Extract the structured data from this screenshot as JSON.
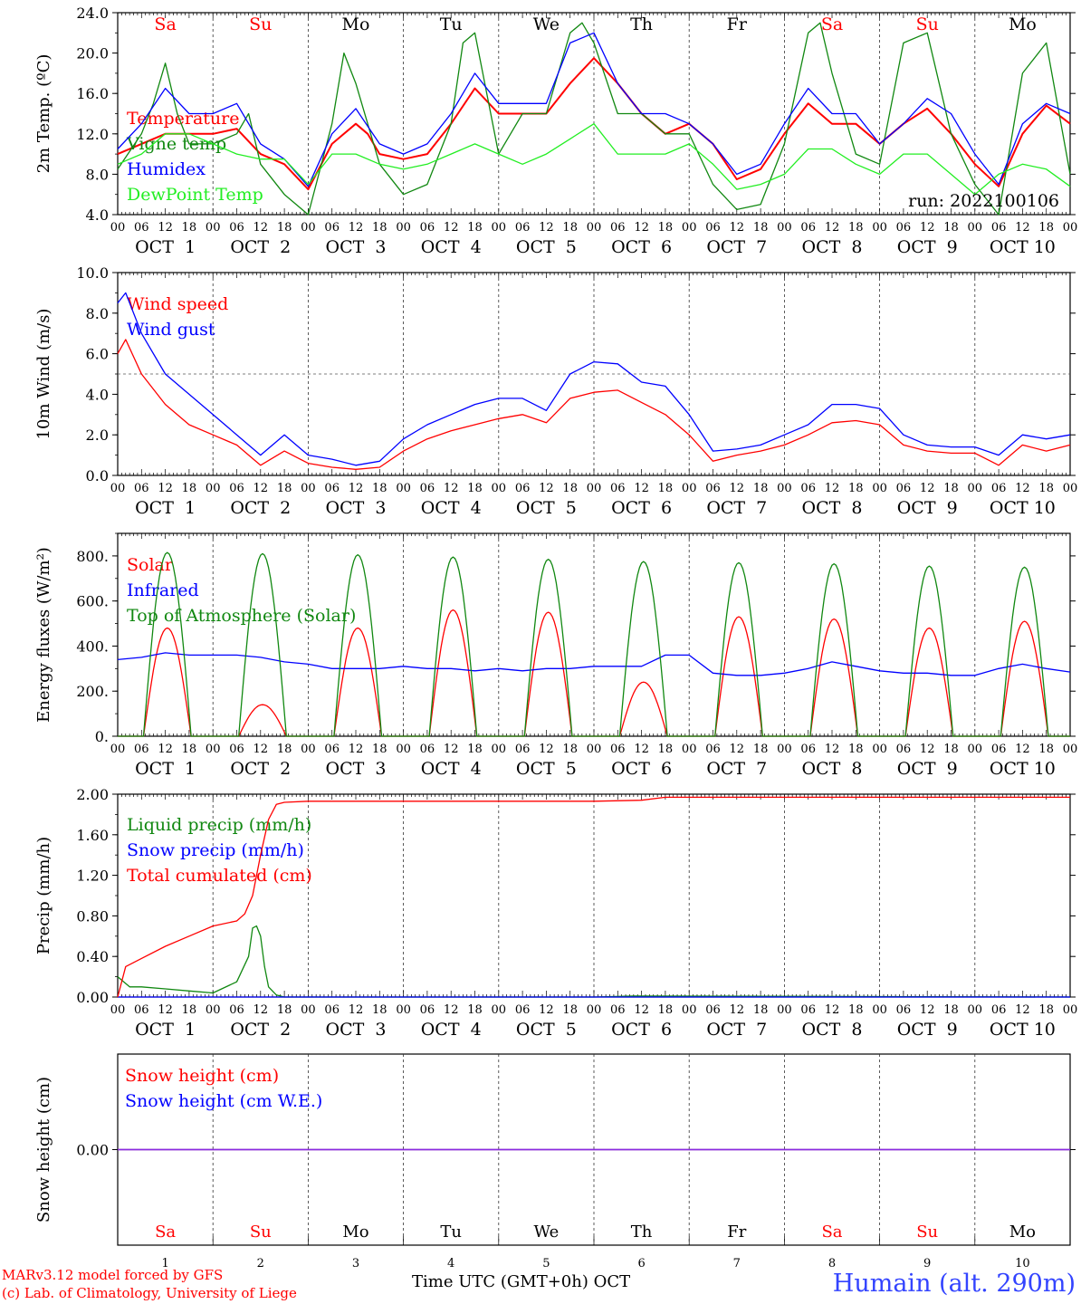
{
  "page": {
    "footer_model": "MARv3.12 model forced by GFS",
    "footer_copyright": "(c) Lab. of Climatology, University of Liege",
    "xlabel": "Time UTC (GMT+0h)",
    "xunit": "OCT",
    "station": "Humain (alt. 290m)",
    "run": "run: 2022100106"
  },
  "colors": {
    "red": "#ff0000",
    "blue": "#0000ff",
    "green": "#118811",
    "lightgreen": "#22ee22",
    "weekend": "#ff0000",
    "weekday": "#000000",
    "purple": "#8a2be2"
  },
  "axis": {
    "days": [
      "1",
      "2",
      "3",
      "4",
      "5",
      "6",
      "7",
      "8",
      "9",
      "10"
    ],
    "dates": [
      "OCT  1",
      "OCT  2",
      "OCT  3",
      "OCT  4",
      "OCT  5",
      "OCT  6",
      "OCT  7",
      "OCT  8",
      "OCT  9",
      "OCT 10"
    ],
    "hours": [
      "00",
      "06",
      "12",
      "18"
    ],
    "weekdays": [
      "Sa",
      "Su",
      "Mo",
      "Tu",
      "We",
      "Th",
      "Fr",
      "Sa",
      "Su",
      "Mo"
    ],
    "weekend": [
      true,
      true,
      false,
      false,
      false,
      false,
      false,
      true,
      true,
      false
    ]
  },
  "chart_data": [
    {
      "type": "line",
      "ylabel": "2m Temp. (ºC)",
      "ylim": [
        4,
        24
      ],
      "yticks": [
        "4.0",
        "8.0",
        "12.0",
        "16.0",
        "20.0",
        "24.0"
      ],
      "x_unit": "hours since OCT 1 00 UTC",
      "series": [
        {
          "name": "Temperature",
          "color": "red",
          "x": [
            0,
            6,
            12,
            18,
            24,
            30,
            36,
            42,
            48,
            54,
            60,
            63,
            66,
            72,
            78,
            84,
            90,
            96,
            102,
            108,
            114,
            120,
            126,
            132,
            138,
            144,
            150,
            156,
            162,
            168,
            174,
            180,
            186,
            192,
            198,
            204,
            210,
            216,
            222,
            228,
            234,
            240
          ],
          "values": [
            10,
            11,
            12,
            12,
            12,
            12.5,
            10,
            9,
            6.5,
            11,
            13,
            12,
            10,
            9.5,
            10,
            13,
            16.5,
            14,
            14,
            14,
            17,
            19.5,
            17,
            14,
            12,
            13,
            11,
            7.5,
            8.5,
            12,
            15,
            13,
            13,
            11,
            13,
            14.5,
            12,
            9,
            6.8,
            12,
            14.8,
            13
          ]
        },
        {
          "name": "Vigne temp",
          "color": "green",
          "x": [
            0,
            6,
            9,
            12,
            15,
            18,
            24,
            30,
            33,
            36,
            42,
            48,
            54,
            57,
            60,
            66,
            72,
            78,
            84,
            87,
            90,
            96,
            102,
            108,
            114,
            117,
            120,
            126,
            132,
            138,
            144,
            150,
            156,
            162,
            168,
            174,
            177,
            180,
            186,
            192,
            198,
            204,
            210,
            216,
            222,
            228,
            234,
            240
          ],
          "values": [
            8.5,
            12,
            15,
            19,
            14,
            11,
            11,
            12,
            14,
            9,
            6,
            4,
            13,
            20,
            17,
            9,
            6,
            7,
            13,
            21,
            22,
            10,
            14,
            14,
            22,
            23,
            21,
            14,
            14,
            12,
            12,
            7,
            4.5,
            5,
            11,
            22,
            23,
            18,
            10,
            9,
            21,
            22,
            12,
            7,
            4,
            18,
            21,
            8
          ]
        },
        {
          "name": "Humidex",
          "color": "blue",
          "x": [
            0,
            6,
            12,
            18,
            24,
            30,
            36,
            42,
            48,
            54,
            60,
            66,
            72,
            78,
            84,
            90,
            96,
            102,
            108,
            114,
            120,
            126,
            132,
            138,
            144,
            150,
            156,
            162,
            168,
            174,
            180,
            186,
            192,
            198,
            204,
            210,
            216,
            222,
            228,
            234,
            240
          ],
          "values": [
            10.5,
            13,
            16.5,
            14,
            14,
            15,
            11,
            9.5,
            6.8,
            12,
            14.5,
            11,
            10,
            11,
            14,
            18,
            15,
            15,
            15,
            21,
            22,
            17,
            14,
            14,
            13,
            11,
            8,
            9,
            13,
            16.5,
            14,
            14,
            11,
            13,
            15.5,
            14,
            10,
            7,
            13,
            15,
            14
          ]
        },
        {
          "name": "DewPoint Temp",
          "color": "lightgreen",
          "x": [
            0,
            6,
            12,
            18,
            24,
            30,
            36,
            42,
            48,
            54,
            60,
            66,
            72,
            78,
            84,
            90,
            96,
            102,
            108,
            114,
            120,
            126,
            132,
            138,
            144,
            150,
            156,
            162,
            168,
            174,
            180,
            186,
            192,
            198,
            204,
            210,
            216,
            222,
            228,
            234,
            240
          ],
          "values": [
            9,
            10,
            12,
            12,
            11,
            10,
            9.5,
            9.5,
            7,
            10,
            10,
            9,
            8.5,
            9,
            10,
            11,
            10,
            9,
            10,
            11.5,
            13,
            10,
            10,
            10,
            11,
            9,
            6.5,
            7,
            8,
            10.5,
            10.5,
            9,
            8,
            10,
            10,
            8,
            6,
            8,
            9,
            8.5,
            6.8
          ]
        }
      ]
    },
    {
      "type": "line",
      "ylabel": "10m Wind (m/s)",
      "ylim": [
        0,
        10
      ],
      "yticks": [
        "0.0",
        "2.0",
        "4.0",
        "6.0",
        "8.0",
        "10.0"
      ],
      "ref_line": 5,
      "series": [
        {
          "name": "Wind speed",
          "color": "red",
          "x": [
            0,
            2,
            6,
            12,
            18,
            24,
            30,
            36,
            42,
            48,
            54,
            60,
            66,
            72,
            78,
            84,
            90,
            96,
            102,
            108,
            114,
            120,
            126,
            132,
            138,
            144,
            150,
            156,
            162,
            168,
            174,
            180,
            186,
            192,
            198,
            204,
            210,
            216,
            222,
            228,
            234,
            240
          ],
          "values": [
            6,
            6.7,
            5,
            3.5,
            2.5,
            2,
            1.5,
            0.5,
            1.2,
            0.6,
            0.4,
            0.3,
            0.4,
            1.2,
            1.8,
            2.2,
            2.5,
            2.8,
            3,
            2.6,
            3.8,
            4.1,
            4.2,
            3.6,
            3,
            2,
            0.7,
            1,
            1.2,
            1.5,
            2,
            2.6,
            2.7,
            2.5,
            1.5,
            1.2,
            1.1,
            1.1,
            0.5,
            1.5,
            1.2,
            1.5
          ]
        },
        {
          "name": "Wind gust",
          "color": "blue",
          "x": [
            0,
            2,
            6,
            12,
            18,
            24,
            30,
            36,
            42,
            48,
            54,
            60,
            66,
            72,
            78,
            84,
            90,
            96,
            102,
            108,
            114,
            120,
            126,
            132,
            138,
            144,
            150,
            156,
            162,
            168,
            174,
            180,
            186,
            192,
            198,
            204,
            210,
            216,
            222,
            228,
            234,
            240
          ],
          "values": [
            8.5,
            9,
            7,
            5,
            4,
            3,
            2,
            1,
            2,
            1,
            0.8,
            0.5,
            0.7,
            1.8,
            2.5,
            3,
            3.5,
            3.8,
            3.8,
            3.2,
            5,
            5.6,
            5.5,
            4.6,
            4.4,
            3,
            1.2,
            1.3,
            1.5,
            2,
            2.5,
            3.5,
            3.5,
            3.3,
            2,
            1.5,
            1.4,
            1.4,
            1,
            2,
            1.8,
            2
          ]
        }
      ]
    },
    {
      "type": "line",
      "ylabel": "Energy fluxes (W/m²)",
      "ylim": [
        0,
        900
      ],
      "yticks": [
        "0.",
        "200.",
        "400.",
        "600.",
        "800."
      ],
      "series": [
        {
          "name": "Solar",
          "color": "red",
          "peaks": [
            480,
            140,
            480,
            560,
            550,
            240,
            530,
            520,
            480,
            510
          ]
        },
        {
          "name": "Infrared",
          "color": "blue",
          "x": [
            0,
            6,
            12,
            18,
            24,
            30,
            36,
            42,
            48,
            54,
            60,
            66,
            72,
            78,
            84,
            90,
            96,
            102,
            108,
            114,
            120,
            126,
            132,
            138,
            144,
            150,
            156,
            162,
            168,
            174,
            180,
            186,
            192,
            198,
            204,
            210,
            216,
            222,
            228,
            234,
            240
          ],
          "values": [
            340,
            350,
            370,
            360,
            360,
            360,
            350,
            330,
            320,
            300,
            300,
            300,
            310,
            300,
            300,
            290,
            300,
            290,
            300,
            300,
            310,
            310,
            310,
            360,
            360,
            280,
            270,
            270,
            280,
            300,
            330,
            310,
            290,
            280,
            280,
            270,
            270,
            300,
            320,
            300,
            285
          ]
        },
        {
          "name": "Top of Atmosphere (Solar)",
          "color": "green",
          "peaks": [
            815,
            810,
            805,
            795,
            785,
            775,
            770,
            765,
            755,
            750
          ]
        }
      ]
    },
    {
      "type": "line",
      "ylabel": "Precip (mm/h)",
      "ylim": [
        0,
        2
      ],
      "yticks": [
        "0.00",
        "0.40",
        "0.80",
        "1.20",
        "1.60",
        "2.00"
      ],
      "series": [
        {
          "name": "Liquid precip (mm/h)",
          "color": "green",
          "x": [
            0,
            3,
            6,
            12,
            18,
            24,
            30,
            33,
            34,
            35,
            36,
            37,
            38,
            40,
            42,
            48,
            120,
            130,
            240
          ],
          "values": [
            0.2,
            0.1,
            0.1,
            0.08,
            0.06,
            0.04,
            0.15,
            0.4,
            0.68,
            0.7,
            0.6,
            0.3,
            0.1,
            0.02,
            0,
            0,
            0,
            0.01,
            0
          ]
        },
        {
          "name": "Snow precip (mm/h)",
          "color": "blue",
          "x": [
            0,
            240
          ],
          "values": [
            0,
            0
          ]
        },
        {
          "name": "Total cumulated (cm)",
          "color": "red",
          "x": [
            0,
            2,
            6,
            12,
            18,
            24,
            30,
            32,
            34,
            36,
            38,
            40,
            42,
            48,
            60,
            96,
            120,
            132,
            138,
            144,
            240
          ],
          "values": [
            0,
            0.3,
            0.38,
            0.5,
            0.6,
            0.7,
            0.75,
            0.82,
            1.0,
            1.4,
            1.75,
            1.9,
            1.92,
            1.93,
            1.93,
            1.93,
            1.93,
            1.94,
            1.97,
            1.97,
            1.97
          ]
        }
      ]
    },
    {
      "type": "line",
      "ylabel": "Snow height (cm)",
      "ylim": [
        -1,
        1
      ],
      "yticks": [
        "0.00"
      ],
      "series": [
        {
          "name": "Snow height (cm)",
          "color": "red",
          "x": [
            0,
            240
          ],
          "values": [
            0,
            0
          ]
        },
        {
          "name": "Snow height (cm W.E.)",
          "color": "blue",
          "x": [
            0,
            240
          ],
          "values": [
            0,
            0
          ]
        }
      ]
    }
  ]
}
